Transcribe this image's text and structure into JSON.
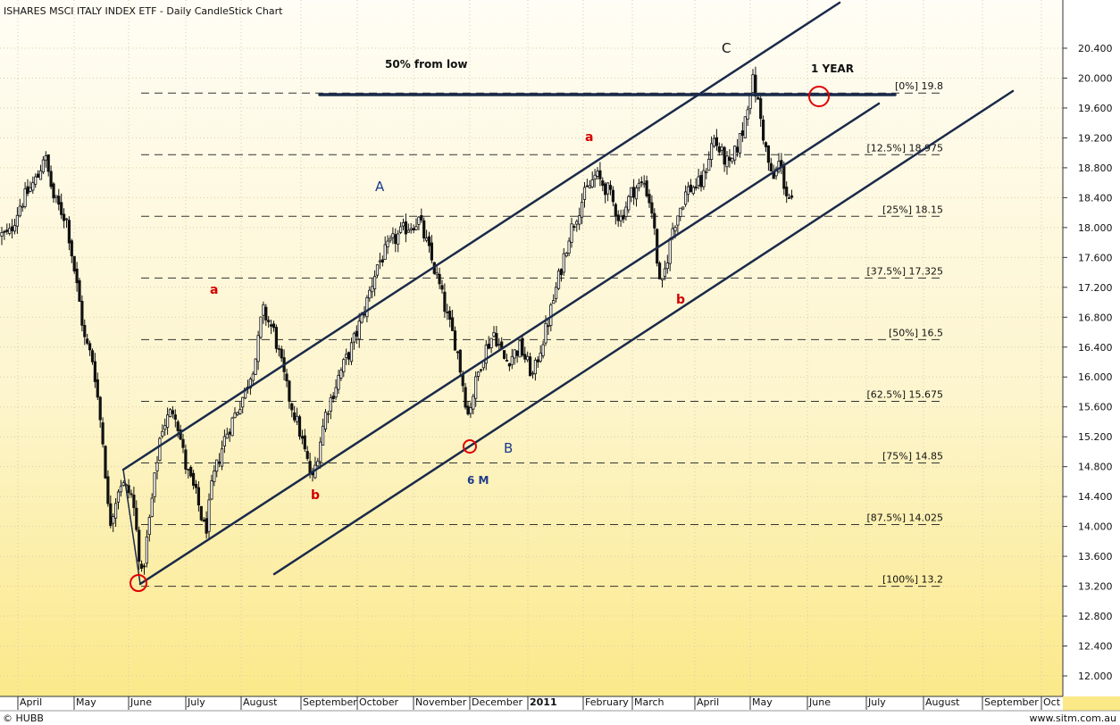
{
  "title": "ISHARES MSCI ITALY INDEX ETF - Daily CandleStick Chart",
  "footer": {
    "left": "© HUBB",
    "right": "www.sitm.com.au"
  },
  "colors": {
    "bg_top": "#fffdf2",
    "bg_bottom": "#fbe98a",
    "channel": "#1a2a4a",
    "circle": "#e00000",
    "wave_blue": "#1c3b8a",
    "wave_red": "#d40000"
  },
  "chart_data": {
    "type": "candlestick",
    "ylim": [
      11.8,
      20.8
    ],
    "yticks": [
      "12.000",
      "12.400",
      "12.800",
      "13.200",
      "13.600",
      "14.000",
      "14.400",
      "14.800",
      "15.200",
      "15.600",
      "16.000",
      "16.400",
      "16.800",
      "17.200",
      "17.600",
      "18.000",
      "18.400",
      "18.800",
      "19.200",
      "19.600",
      "20.000",
      "20.400"
    ],
    "x_labels": [
      "April",
      "May",
      "June",
      "July",
      "August",
      "September",
      "October",
      "November",
      "December",
      "2011",
      "February",
      "March",
      "April",
      "May",
      "June",
      "July",
      "August",
      "September",
      "Oct"
    ],
    "grid": true,
    "fib_levels": [
      {
        "label": "[0%] 19.8",
        "value": 19.8
      },
      {
        "label": "[12.5%] 18.975",
        "value": 18.975
      },
      {
        "label": "[25%] 18.15",
        "value": 18.15
      },
      {
        "label": "[37.5%] 17.325",
        "value": 17.325
      },
      {
        "label": "[50%] 16.5",
        "value": 16.5
      },
      {
        "label": "[62.5%] 15.675",
        "value": 15.675
      },
      {
        "label": "[75%] 14.85",
        "value": 14.85
      },
      {
        "label": "[87.5%] 14.025",
        "value": 14.025
      },
      {
        "label": "[100%] 13.2",
        "value": 13.2
      }
    ],
    "price_path": [
      [
        "2010-03-25",
        17.9
      ],
      [
        "2010-04-02",
        18.3
      ],
      [
        "2010-04-12",
        18.7
      ],
      [
        "2010-04-15",
        19.0
      ],
      [
        "2010-04-20",
        18.4
      ],
      [
        "2010-04-27",
        18.1
      ],
      [
        "2010-05-04",
        17.0
      ],
      [
        "2010-05-07",
        16.5
      ],
      [
        "2010-05-12",
        16.2
      ],
      [
        "2010-05-18",
        15.0
      ],
      [
        "2010-05-21",
        14.0
      ],
      [
        "2010-05-27",
        14.6
      ],
      [
        "2010-06-03",
        14.4
      ],
      [
        "2010-06-08",
        13.3
      ],
      [
        "2010-06-14",
        14.5
      ],
      [
        "2010-06-18",
        15.3
      ],
      [
        "2010-06-25",
        15.6
      ],
      [
        "2010-07-01",
        14.8
      ],
      [
        "2010-07-07",
        14.4
      ],
      [
        "2010-07-12",
        13.9
      ],
      [
        "2010-07-16",
        14.6
      ],
      [
        "2010-07-23",
        15.2
      ],
      [
        "2010-08-03",
        15.8
      ],
      [
        "2010-08-09",
        16.3
      ],
      [
        "2010-08-12",
        16.9
      ],
      [
        "2010-08-18",
        16.6
      ],
      [
        "2010-08-25",
        15.8
      ],
      [
        "2010-08-31",
        15.3
      ],
      [
        "2010-09-07",
        14.6
      ],
      [
        "2010-09-14",
        15.5
      ],
      [
        "2010-09-21",
        16.0
      ],
      [
        "2010-09-28",
        16.4
      ],
      [
        "2010-10-05",
        16.9
      ],
      [
        "2010-10-12",
        17.5
      ],
      [
        "2010-10-20",
        17.8
      ],
      [
        "2010-10-28",
        18.0
      ],
      [
        "2010-11-04",
        18.1
      ],
      [
        "2010-11-09",
        17.7
      ],
      [
        "2010-11-15",
        17.2
      ],
      [
        "2010-11-19",
        16.8
      ],
      [
        "2010-11-24",
        16.4
      ],
      [
        "2010-11-30",
        15.5
      ],
      [
        "2010-12-03",
        15.8
      ],
      [
        "2010-12-08",
        16.3
      ],
      [
        "2010-12-14",
        16.6
      ],
      [
        "2010-12-20",
        16.2
      ],
      [
        "2010-12-28",
        16.4
      ],
      [
        "2011-01-04",
        16.0
      ],
      [
        "2011-01-07",
        16.3
      ],
      [
        "2011-01-12",
        16.7
      ],
      [
        "2011-01-18",
        17.3
      ],
      [
        "2011-01-24",
        17.9
      ],
      [
        "2011-02-01",
        18.4
      ],
      [
        "2011-02-08",
        18.7
      ],
      [
        "2011-02-15",
        18.5
      ],
      [
        "2011-02-22",
        18.1
      ],
      [
        "2011-03-01",
        18.5
      ],
      [
        "2011-03-07",
        18.6
      ],
      [
        "2011-03-11",
        18.2
      ],
      [
        "2011-03-15",
        17.1
      ],
      [
        "2011-03-21",
        18.0
      ],
      [
        "2011-03-28",
        18.5
      ],
      [
        "2011-04-05",
        18.6
      ],
      [
        "2011-04-11",
        19.2
      ],
      [
        "2011-04-15",
        19.0
      ],
      [
        "2011-04-20",
        18.8
      ],
      [
        "2011-04-27",
        19.3
      ],
      [
        "2011-05-02",
        20.0
      ],
      [
        "2011-05-05",
        19.7
      ],
      [
        "2011-05-09",
        19.1
      ],
      [
        "2011-05-13",
        18.6
      ],
      [
        "2011-05-17",
        18.9
      ],
      [
        "2011-05-20",
        18.5
      ],
      [
        "2011-05-24",
        18.3
      ]
    ]
  },
  "annotations": {
    "pct_from_low": "50% from low",
    "one_year": "1 YEAR",
    "six_m": "6 M",
    "A": "A",
    "B": "B",
    "C": "C",
    "a1": "a",
    "b1": "b",
    "a2": "a",
    "b2": "b"
  }
}
